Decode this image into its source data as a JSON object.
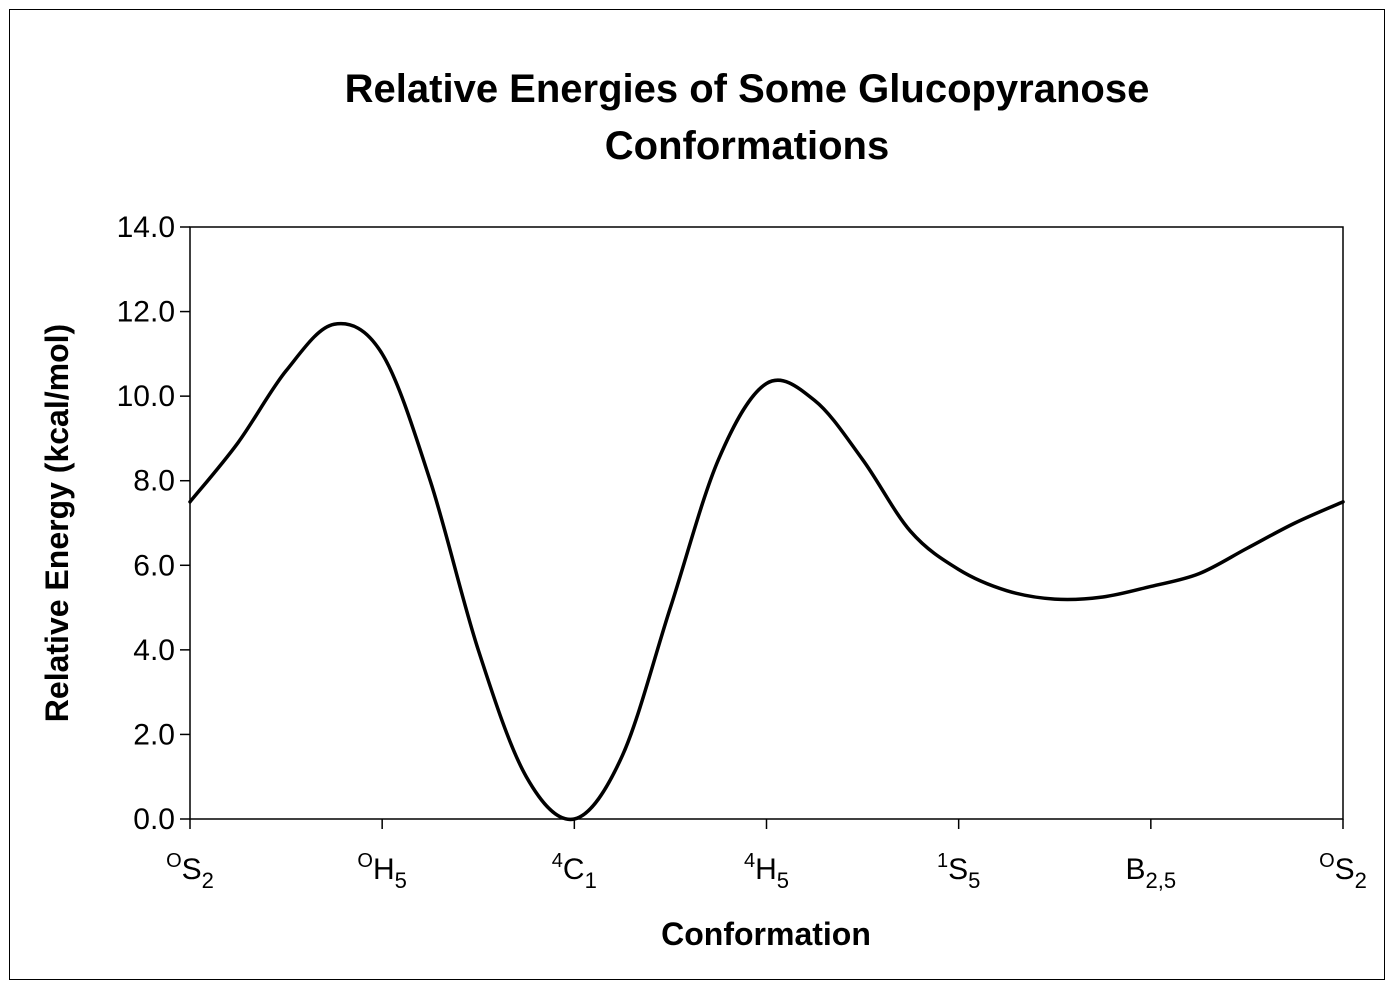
{
  "chart_data": {
    "type": "line",
    "title_lines": [
      "Relative Energies of Some Glucopyranose",
      "Conformations"
    ],
    "xlabel": "Conformation",
    "ylabel": "Relative Energy (kcal/mol)",
    "ylim": [
      0,
      14
    ],
    "yticks": [
      "0.0",
      "2.0",
      "4.0",
      "6.0",
      "8.0",
      "10.0",
      "12.0",
      "14.0"
    ],
    "categories": [
      {
        "pre": "O",
        "base": "S",
        "sub": "2"
      },
      {
        "pre": "O",
        "base": "H",
        "sub": "5"
      },
      {
        "pre": "4",
        "base": "C",
        "sub": "1"
      },
      {
        "pre": "4",
        "base": "H",
        "sub": "5"
      },
      {
        "pre": "1",
        "base": "S",
        "sub": "5"
      },
      {
        "pre": "",
        "base": "B",
        "sub": "2,5"
      },
      {
        "pre": "O",
        "base": "S",
        "sub": "2"
      }
    ],
    "series": [
      {
        "x": [
          0,
          0.25,
          0.5,
          0.75,
          1,
          1.25,
          1.5,
          1.75,
          2,
          2.25,
          2.5,
          2.75,
          3,
          3.25,
          3.5,
          3.75,
          4,
          4.25,
          4.5,
          4.75,
          5,
          5.25,
          5.5,
          5.75,
          6
        ],
        "y": [
          7.5,
          8.9,
          10.6,
          11.7,
          11.0,
          8.0,
          4.0,
          1.0,
          0.0,
          1.5,
          5.0,
          8.5,
          10.3,
          9.9,
          8.5,
          6.8,
          5.9,
          5.4,
          5.2,
          5.25,
          5.5,
          5.8,
          6.4,
          7.0,
          7.5
        ],
        "color": "#000000"
      }
    ],
    "grid": false,
    "legend": "none"
  }
}
